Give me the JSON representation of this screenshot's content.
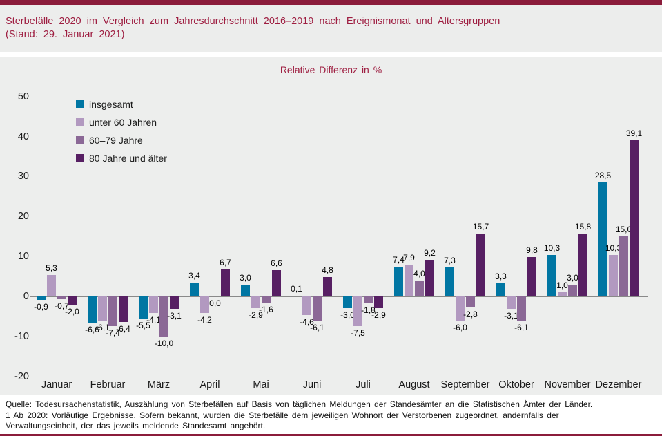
{
  "header": {
    "title_line1": "Sterbefälle 2020 im Vergleich zum Jahresdurchschnitt 2016–2019 nach Ereignismonat und Altersgruppen",
    "title_line2": "(Stand: 29. Januar 2021)"
  },
  "chart_data": {
    "type": "bar",
    "title": "Relative Differenz in %",
    "categories": [
      "Januar",
      "Februar",
      "März",
      "April",
      "Mai",
      "Juni",
      "Juli",
      "August",
      "September",
      "Oktober",
      "November",
      "Dezember"
    ],
    "series": [
      {
        "name": "insgesamt",
        "color": "#0076a3",
        "values": [
          -0.9,
          -6.6,
          -5.5,
          3.4,
          3.0,
          0.1,
          -3.0,
          7.4,
          7.3,
          3.3,
          10.3,
          28.5
        ],
        "labels": [
          "-0,9",
          "-6,6",
          "-5,5",
          "3,4",
          "3,0",
          "0,1",
          "-3,0",
          "7,4",
          "7,3",
          "3,3",
          "10,3",
          "28,5"
        ]
      },
      {
        "name": "unter 60 Jahren",
        "color": "#b299c0",
        "values": [
          5.3,
          -6.1,
          -4.1,
          -4.2,
          -2.9,
          -4.6,
          -7.5,
          7.9,
          -6.0,
          -3.1,
          1.0,
          10.3
        ],
        "labels": [
          "5,3",
          "-6,1",
          "-4,1",
          "-4,2",
          "-2,9",
          "-4,6",
          "-7,5",
          "7,9",
          "-6,0",
          "-3,1",
          "1,0",
          "10,3"
        ]
      },
      {
        "name": "60–79 Jahre",
        "color": "#8b6896",
        "values": [
          -0.7,
          -7.4,
          -10.0,
          0.0,
          -1.6,
          -6.1,
          -1.8,
          4.0,
          -2.8,
          -6.1,
          3.0,
          15.0
        ],
        "labels": [
          "-0,7",
          "-7,4",
          "-10,0",
          "0,0",
          "-1,6",
          "-6,1",
          "-1,8",
          "4,0",
          "-2,8",
          "-6,1",
          "3,0",
          "15,0"
        ]
      },
      {
        "name": "80 Jahre und älter",
        "color": "#571f63",
        "values": [
          -2.0,
          -6.4,
          -3.1,
          6.7,
          6.6,
          4.8,
          -2.9,
          9.2,
          15.7,
          9.8,
          15.8,
          39.1
        ],
        "labels": [
          "-2,0",
          "-6,4",
          "-3,1",
          "6,7",
          "6,6",
          "4,8",
          "-2,9",
          "9,2",
          "15,7",
          "9,8",
          "15,8",
          "39,1"
        ]
      }
    ],
    "y_axis": {
      "ticks": [
        50,
        40,
        30,
        20,
        10,
        0,
        -10,
        -20
      ],
      "min": -20,
      "max": 50
    },
    "grid": false,
    "legend_position": "top-left"
  },
  "footer": {
    "lines": [
      "Quelle: Todesursachenstatistik, Auszählung von Sterbefällen auf Basis von täglichen Meldungen der Standesämter an die Statistischen Ämter der Länder.",
      "1 Ab 2020: Vorläufige Ergebnisse. Sofern bekannt, wurden die Sterbefälle dem jeweiligen Wohnort der Verstorbenen zugeordnet, andernfalls der",
      "Verwaltungseinheit, der das jeweils meldende Standesamt angehört."
    ]
  },
  "colors": {
    "accent_bar": "#8b1c3b",
    "title_text": "#9e1e41",
    "header_bg": "#ecedec",
    "chart_bg": "#edeeed",
    "zero_line": "#898989"
  }
}
